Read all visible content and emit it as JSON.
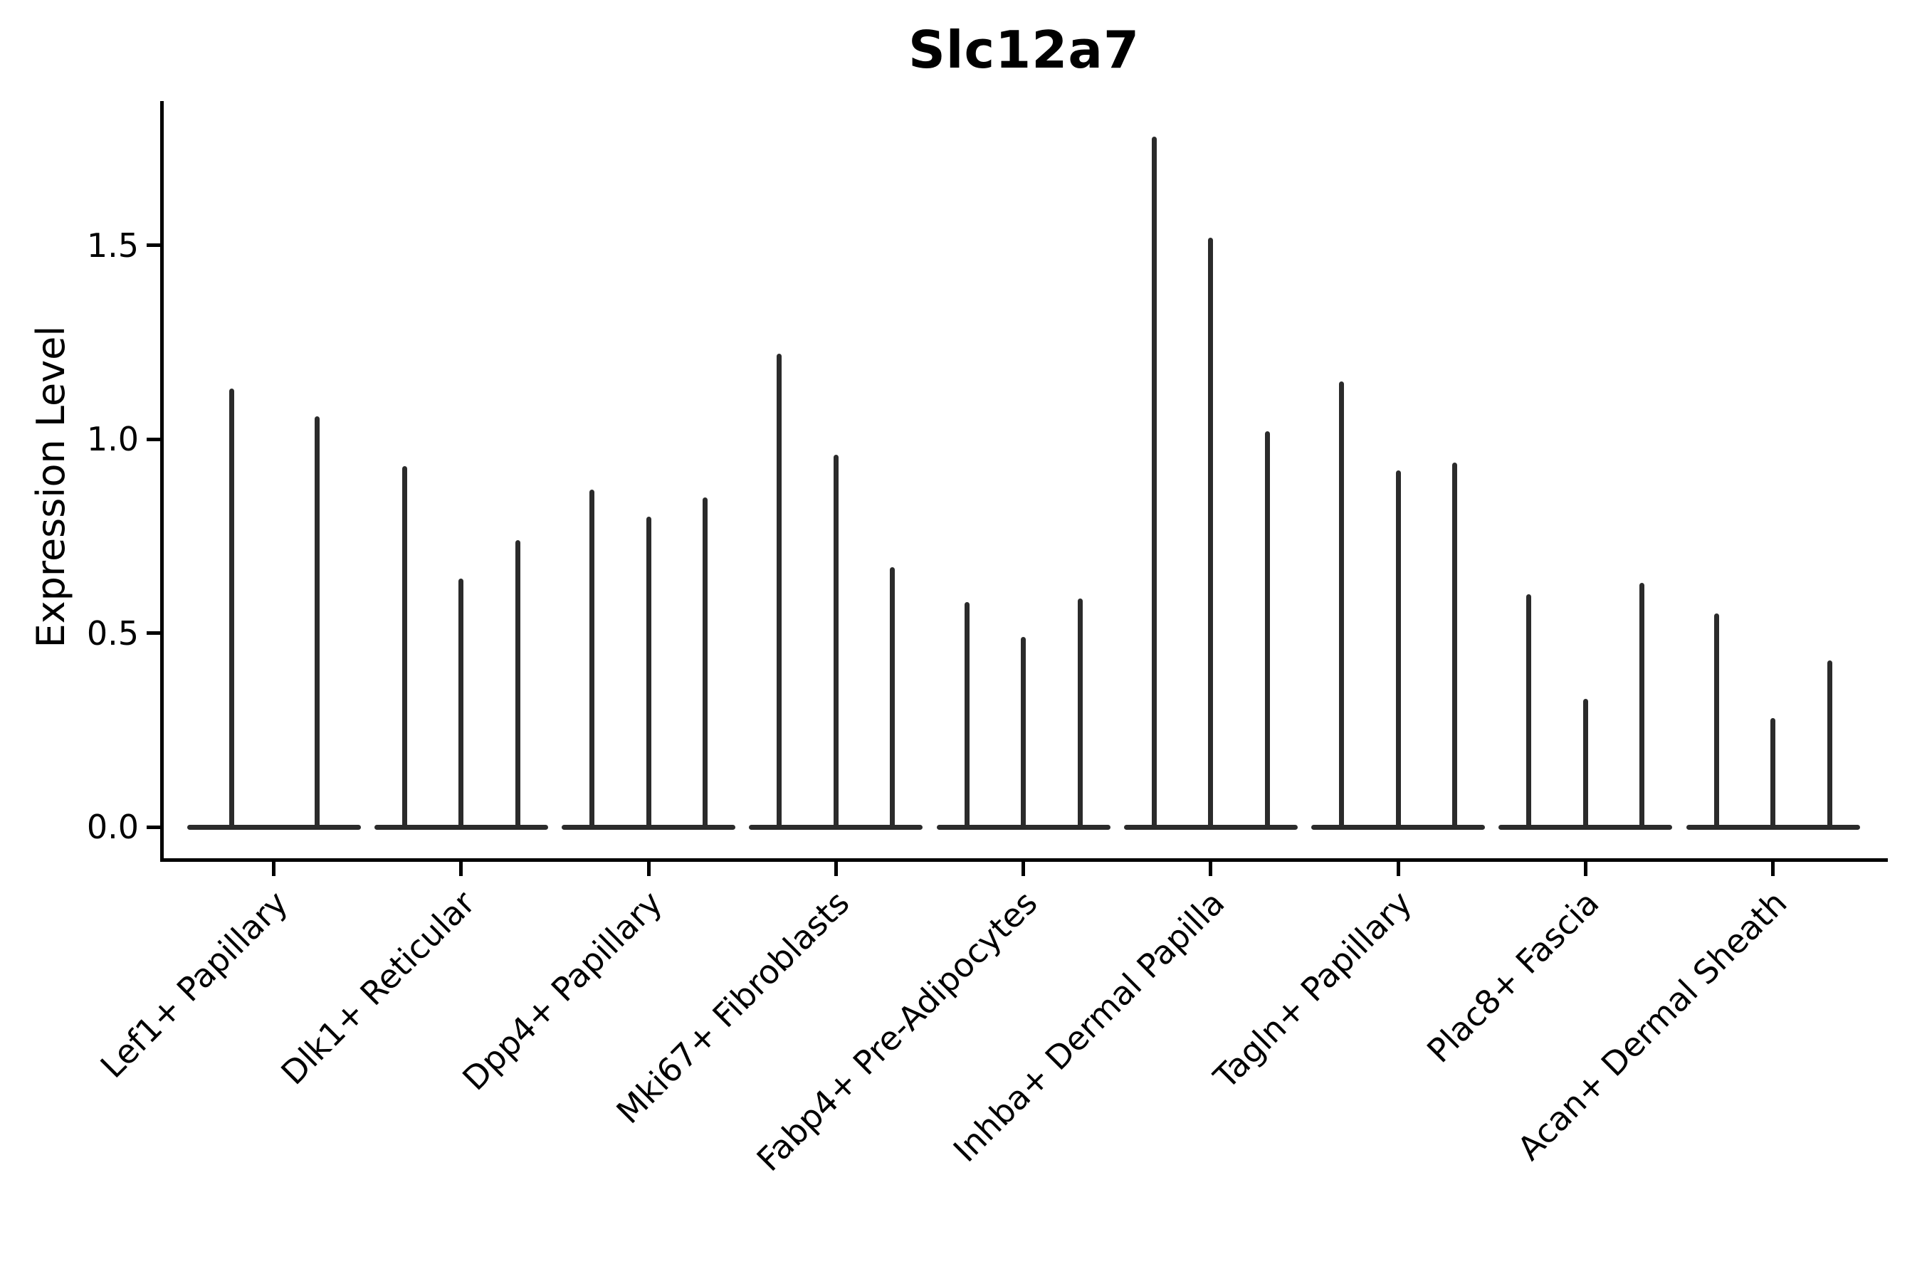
{
  "title": "Slc12a7",
  "axes": {
    "ylabel": "Expression Level"
  },
  "colors": {
    "violin": "#2b2b2b",
    "axis": "#000000",
    "text": "#000000",
    "background": "#ffffff"
  },
  "chart_data": {
    "type": "violin",
    "title": "Slc12a7",
    "xlabel": "",
    "ylabel": "Expression Level",
    "ylim": [
      -0.08,
      1.87
    ],
    "yticks": [
      0.0,
      0.5,
      1.0,
      1.5
    ],
    "grid": false,
    "legend": "none",
    "note": "Thin spike-like violins; each category holds 2-3 violins whose peaks reach the listed expression values, with a flat wide base at 0.",
    "categories": [
      "Lef1+ Papillary",
      "Dlk1+ Reticular",
      "Dpp4+ Papillary",
      "Mki67+ Fibroblasts",
      "Fabp4+ Pre-Adipocytes",
      "Inhba+ Dermal Papilla",
      "Tagln+ Papillary",
      "Plac8+ Fascia",
      "Acan+ Dermal Sheath"
    ],
    "series": [
      {
        "category": "Lef1+ Papillary",
        "violins": [
          {
            "offset": -59,
            "peak": 1.13
          },
          {
            "offset": 61,
            "peak": 1.06
          }
        ]
      },
      {
        "category": "Dlk1+ Reticular",
        "violins": [
          {
            "offset": -79.5,
            "peak": 0.93
          },
          {
            "offset": 0,
            "peak": 0.64
          },
          {
            "offset": 79.5,
            "peak": 0.74
          }
        ]
      },
      {
        "category": "Dpp4+ Papillary",
        "violins": [
          {
            "offset": -79.5,
            "peak": 0.87
          },
          {
            "offset": 0,
            "peak": 0.8
          },
          {
            "offset": 79.5,
            "peak": 0.85
          }
        ]
      },
      {
        "category": "Mki67+ Fibroblasts",
        "violins": [
          {
            "offset": -79.5,
            "peak": 1.22
          },
          {
            "offset": 0,
            "peak": 0.96
          },
          {
            "offset": 79.5,
            "peak": 0.67
          }
        ]
      },
      {
        "category": "Fabp4+ Pre-Adipocytes",
        "violins": [
          {
            "offset": -79.5,
            "peak": 0.58
          },
          {
            "offset": 0,
            "peak": 0.49
          },
          {
            "offset": 79.5,
            "peak": 0.59
          }
        ]
      },
      {
        "category": "Inhba+ Dermal Papilla",
        "violins": [
          {
            "offset": -79.5,
            "peak": 1.78
          },
          {
            "offset": 0,
            "peak": 1.52
          },
          {
            "offset": 79.5,
            "peak": 1.02
          }
        ]
      },
      {
        "category": "Tagln+ Papillary",
        "violins": [
          {
            "offset": -79.5,
            "peak": 1.15
          },
          {
            "offset": 0,
            "peak": 0.92
          },
          {
            "offset": 79.5,
            "peak": 0.94
          }
        ]
      },
      {
        "category": "Plac8+ Fascia",
        "violins": [
          {
            "offset": -79.5,
            "peak": 0.6
          },
          {
            "offset": 0,
            "peak": 0.33
          },
          {
            "offset": 79.5,
            "peak": 0.63
          }
        ]
      },
      {
        "category": "Acan+ Dermal Sheath",
        "violins": [
          {
            "offset": -79.5,
            "peak": 0.55
          },
          {
            "offset": 0,
            "peak": 0.28
          },
          {
            "offset": 79.5,
            "peak": 0.43
          }
        ]
      }
    ]
  }
}
